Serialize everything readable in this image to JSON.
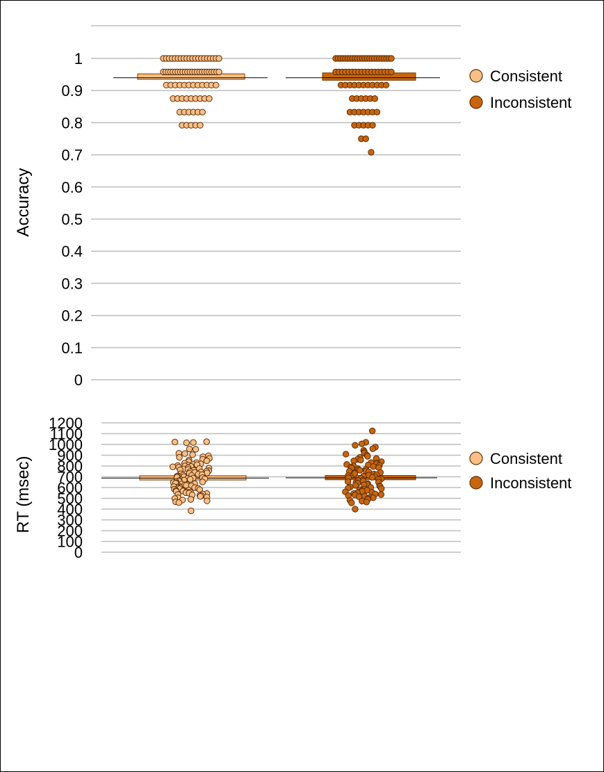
{
  "chart_data": [
    {
      "type": "box",
      "title": "",
      "xlabel": "",
      "ylabel": "Accuracy",
      "ylim": [
        0,
        1.05
      ],
      "yticks": [
        0,
        0.1,
        0.2,
        0.3,
        0.4,
        0.5,
        0.6,
        0.7,
        0.8,
        0.9,
        1
      ],
      "ytick_labels": [
        "0",
        "0.1",
        "0.2",
        "0.3",
        "0.4",
        "0.5",
        "0.6",
        "0.7",
        "0.8",
        "0.9",
        "1"
      ],
      "grid": true,
      "legend": "right",
      "colors": {
        "Consistent": "#f9bf86",
        "Inconsistent": "#c8650f"
      },
      "series": [
        {
          "name": "Consistent",
          "q1": 0.935,
          "median": 0.94,
          "q3": 0.952,
          "mean": 0.94,
          "points": [
            1,
            1,
            1,
            1,
            1,
            1,
            1,
            1,
            1,
            1,
            1,
            1,
            1,
            1,
            1,
            1,
            1,
            1,
            1,
            1,
            0.958,
            0.958,
            0.958,
            0.958,
            0.958,
            0.958,
            0.958,
            0.958,
            0.958,
            0.958,
            0.958,
            0.958,
            0.958,
            0.958,
            0.958,
            0.958,
            0.958,
            0.958,
            0.958,
            0.958,
            0.958,
            0.958,
            0.958,
            0.958,
            0.917,
            0.917,
            0.917,
            0.917,
            0.917,
            0.917,
            0.917,
            0.917,
            0.917,
            0.917,
            0.917,
            0.917,
            0.875,
            0.875,
            0.875,
            0.875,
            0.875,
            0.875,
            0.875,
            0.875,
            0.875,
            0.833,
            0.833,
            0.833,
            0.833,
            0.833,
            0.833,
            0.792,
            0.792,
            0.792,
            0.792,
            0.792
          ]
        },
        {
          "name": "Inconsistent",
          "q1": 0.932,
          "median": 0.94,
          "q3": 0.955,
          "mean": 0.94,
          "points": [
            1,
            1,
            1,
            1,
            1,
            1,
            1,
            1,
            1,
            1,
            1,
            1,
            1,
            1,
            1,
            1,
            1,
            1,
            1,
            1,
            1,
            1,
            1,
            1,
            0.958,
            0.958,
            0.958,
            0.958,
            0.958,
            0.958,
            0.958,
            0.958,
            0.958,
            0.958,
            0.958,
            0.958,
            0.958,
            0.958,
            0.958,
            0.958,
            0.958,
            0.958,
            0.917,
            0.917,
            0.917,
            0.917,
            0.917,
            0.917,
            0.917,
            0.917,
            0.917,
            0.917,
            0.917,
            0.875,
            0.875,
            0.875,
            0.875,
            0.875,
            0.875,
            0.833,
            0.833,
            0.833,
            0.833,
            0.833,
            0.833,
            0.833,
            0.792,
            0.792,
            0.792,
            0.792,
            0.792,
            0.75,
            0.75,
            0.708
          ]
        }
      ]
    },
    {
      "type": "box",
      "title": "",
      "xlabel": "",
      "ylabel": "RT (msec)",
      "ylim": [
        0,
        1200
      ],
      "yticks": [
        0,
        100,
        200,
        300,
        400,
        500,
        600,
        700,
        800,
        900,
        1000,
        1100,
        1200
      ],
      "ytick_labels": [
        "0",
        "100",
        "200",
        "300",
        "400",
        "500",
        "600",
        "700",
        "800",
        "900",
        "1000",
        "1100",
        "1200"
      ],
      "grid": true,
      "legend": "right",
      "colors": {
        "Consistent": "#f9bf86",
        "Inconsistent": "#c8650f"
      },
      "series": [
        {
          "name": "Consistent",
          "q1": 670,
          "median": 688,
          "q3": 710,
          "mean": 688,
          "points": [
            1025,
            1022,
            1018,
            1015,
            958,
            955,
            918,
            915,
            905,
            895,
            885,
            880,
            870,
            862,
            855,
            848,
            840,
            832,
            825,
            820,
            815,
            812,
            808,
            804,
            800,
            796,
            792,
            788,
            784,
            780,
            776,
            772,
            768,
            764,
            760,
            756,
            752,
            748,
            744,
            740,
            736,
            732,
            728,
            724,
            720,
            716,
            712,
            708,
            704,
            700,
            696,
            692,
            688,
            684,
            680,
            676,
            672,
            668,
            664,
            660,
            656,
            652,
            648,
            644,
            640,
            636,
            632,
            628,
            624,
            620,
            616,
            612,
            608,
            604,
            600,
            596,
            592,
            588,
            584,
            580,
            576,
            572,
            568,
            564,
            560,
            556,
            552,
            548,
            544,
            540,
            536,
            532,
            528,
            524,
            518,
            512,
            505,
            498,
            490,
            484,
            476,
            468,
            460,
            384
          ]
        },
        {
          "name": "Inconsistent",
          "q1": 672,
          "median": 690,
          "q3": 712,
          "mean": 690,
          "points": [
            1125,
            1020,
            1005,
            992,
            975,
            960,
            945,
            932,
            920,
            910,
            900,
            890,
            880,
            870,
            862,
            855,
            848,
            840,
            832,
            825,
            820,
            815,
            810,
            805,
            800,
            795,
            790,
            785,
            780,
            775,
            770,
            765,
            760,
            755,
            750,
            745,
            740,
            735,
            730,
            725,
            720,
            715,
            710,
            705,
            700,
            695,
            690,
            685,
            680,
            675,
            670,
            665,
            660,
            655,
            650,
            645,
            640,
            635,
            630,
            625,
            620,
            615,
            610,
            605,
            600,
            595,
            590,
            585,
            580,
            575,
            570,
            565,
            560,
            555,
            550,
            545,
            540,
            535,
            530,
            525,
            520,
            515,
            510,
            505,
            498,
            490,
            482,
            474,
            466,
            458,
            400
          ]
        }
      ]
    }
  ]
}
